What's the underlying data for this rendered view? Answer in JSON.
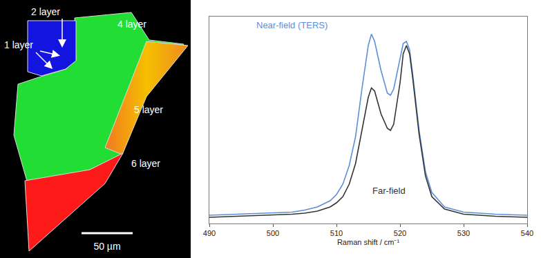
{
  "map": {
    "regions": [
      {
        "label": "2 layer"
      },
      {
        "label": "1 layer"
      },
      {
        "label": "4 layer"
      },
      {
        "label": "5 layer"
      },
      {
        "label": "6 layer"
      }
    ],
    "scale_bar": "50 µm"
  },
  "chart_data": {
    "type": "line",
    "x_label": "Raman shift / cm⁻¹",
    "x": [
      490,
      495,
      500,
      503,
      505,
      507,
      509,
      510,
      511,
      512,
      513,
      514,
      515,
      515.5,
      516,
      517,
      518,
      518.5,
      519,
      520,
      520.5,
      521,
      521.5,
      522,
      523,
      524,
      525,
      527,
      530,
      535,
      540
    ],
    "series": [
      {
        "name": "Near-field (TERS)",
        "color": "#5b8fd6",
        "values": [
          4,
          4.5,
          5,
          5.5,
          6.5,
          8,
          11,
          14,
          19,
          28,
          42,
          65,
          86,
          91.5,
          88,
          74,
          63,
          62,
          65,
          80,
          87,
          88,
          84,
          72,
          45,
          25,
          15,
          8,
          5.5,
          4.5,
          4
        ]
      },
      {
        "name": "Far-field",
        "color": "#333333",
        "values": [
          3,
          3.5,
          4,
          4.5,
          5,
          6,
          8,
          10,
          13,
          19,
          29,
          45,
          61,
          65.5,
          64,
          53,
          46,
          45,
          48,
          68,
          82,
          86,
          82,
          70,
          43,
          23,
          13,
          7,
          4.5,
          3.5,
          3
        ]
      }
    ],
    "xlim": [
      490,
      540
    ],
    "xticks": [
      490,
      500,
      510,
      520,
      530,
      540
    ],
    "ylim": [
      0,
      100
    ],
    "tick_labels": "x",
    "grid": false
  }
}
